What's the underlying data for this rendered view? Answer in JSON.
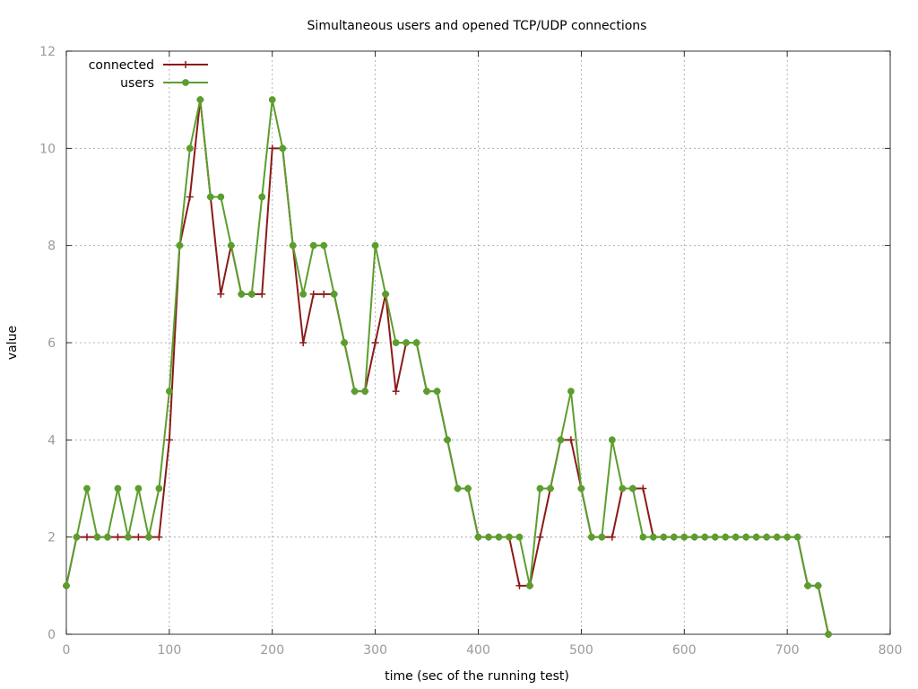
{
  "chart_data": {
    "type": "line",
    "title": "Simultaneous users and opened TCP/UDP connections",
    "xlabel": "time (sec of the running test)",
    "ylabel": "value",
    "xlim": [
      0,
      800
    ],
    "ylim": [
      0,
      12
    ],
    "xticks": [
      "0",
      "100",
      "200",
      "300",
      "400",
      "500",
      "600",
      "700",
      "800"
    ],
    "yticks": [
      "0",
      "2",
      "4",
      "6",
      "8",
      "10",
      "12"
    ],
    "grid": true,
    "legend": "top-left",
    "x": [
      0,
      10,
      20,
      30,
      40,
      50,
      60,
      70,
      80,
      90,
      100,
      110,
      120,
      130,
      140,
      150,
      160,
      170,
      180,
      190,
      200,
      210,
      220,
      230,
      240,
      250,
      260,
      270,
      280,
      290,
      300,
      310,
      320,
      330,
      340,
      350,
      360,
      370,
      380,
      390,
      400,
      410,
      420,
      430,
      440,
      450,
      460,
      470,
      480,
      490,
      500,
      510,
      520,
      530,
      540,
      550,
      560,
      570,
      580,
      590,
      600,
      610,
      620,
      630,
      640,
      650,
      660,
      670,
      680,
      690,
      700,
      710,
      720,
      730,
      740
    ],
    "series": [
      {
        "name": "connected",
        "color": "#8b1a1a",
        "marker": "plus",
        "values": [
          1,
          2,
          2,
          2,
          2,
          2,
          2,
          2,
          2,
          2,
          4,
          8,
          9,
          11,
          9,
          7,
          8,
          7,
          7,
          7,
          10,
          10,
          8,
          6,
          7,
          7,
          7,
          6,
          5,
          5,
          6,
          7,
          5,
          6,
          6,
          5,
          5,
          4,
          3,
          3,
          2,
          2,
          2,
          2,
          1,
          1,
          2,
          3,
          4,
          4,
          3,
          2,
          2,
          2,
          3,
          3,
          3,
          2,
          2,
          2,
          2,
          2,
          2,
          2,
          2,
          2,
          2,
          2,
          2,
          2,
          2,
          2,
          1,
          1,
          0
        ]
      },
      {
        "name": "users",
        "color": "#5c9e2e",
        "marker": "dot",
        "values": [
          1,
          2,
          3,
          2,
          2,
          3,
          2,
          3,
          2,
          3,
          5,
          8,
          10,
          11,
          9,
          9,
          8,
          7,
          7,
          9,
          11,
          10,
          8,
          7,
          8,
          8,
          7,
          6,
          5,
          5,
          8,
          7,
          6,
          6,
          6,
          5,
          5,
          4,
          3,
          3,
          2,
          2,
          2,
          2,
          2,
          1,
          3,
          3,
          4,
          5,
          3,
          2,
          2,
          4,
          3,
          3,
          2,
          2,
          2,
          2,
          2,
          2,
          2,
          2,
          2,
          2,
          2,
          2,
          2,
          2,
          2,
          2,
          1,
          1,
          0
        ]
      }
    ]
  }
}
